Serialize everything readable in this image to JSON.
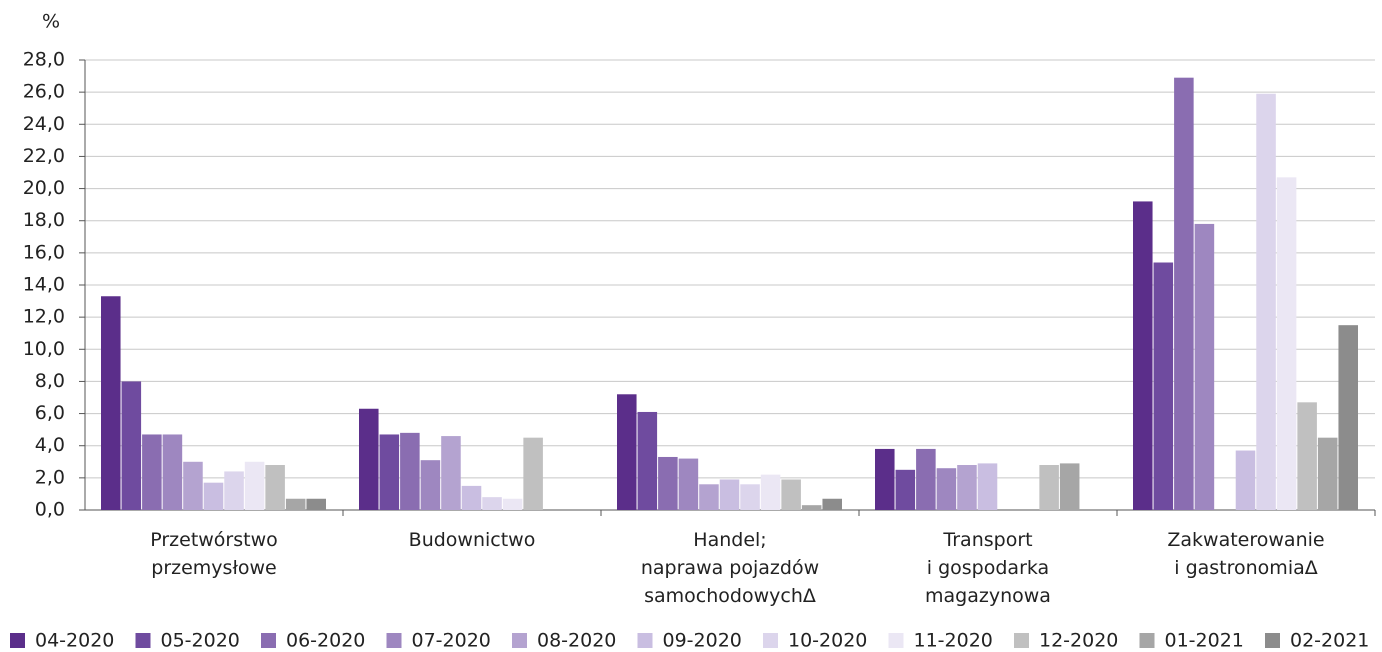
{
  "chart_data": {
    "type": "bar",
    "y_label": "%",
    "categories": [
      "Przetwórstwo\nprzemysłowe",
      "Budownictwo",
      "Handel;\nnaprawa pojazdów\nsamochodowychΔ",
      "Transport\ni gospodarka\nmagazynowa",
      "Zakwaterowanie\ni gastronomiaΔ"
    ],
    "series": [
      {
        "name": "04-2020",
        "color": "#5b2e8a",
        "values": [
          13.3,
          6.3,
          7.2,
          3.8,
          19.2
        ]
      },
      {
        "name": "05-2020",
        "color": "#6f4b9f",
        "values": [
          8.0,
          4.7,
          6.1,
          2.5,
          15.4
        ]
      },
      {
        "name": "06-2020",
        "color": "#8a6db1",
        "values": [
          4.7,
          4.8,
          3.3,
          3.8,
          26.9
        ]
      },
      {
        "name": "07-2020",
        "color": "#9e87c0",
        "values": [
          4.7,
          3.1,
          3.2,
          2.6,
          17.8
        ]
      },
      {
        "name": "08-2020",
        "color": "#b4a3d0",
        "values": [
          3.0,
          4.6,
          1.6,
          2.8,
          null
        ]
      },
      {
        "name": "09-2020",
        "color": "#c9bee1",
        "values": [
          1.7,
          1.5,
          1.9,
          2.9,
          3.7
        ]
      },
      {
        "name": "10-2020",
        "color": "#dcd5ec",
        "values": [
          2.4,
          0.8,
          1.6,
          null,
          25.9
        ]
      },
      {
        "name": "11-2020",
        "color": "#ebe7f4",
        "values": [
          3.0,
          0.7,
          2.2,
          null,
          20.7
        ]
      },
      {
        "name": "12-2020",
        "color": "#c0c0c0",
        "values": [
          2.8,
          4.5,
          1.9,
          2.8,
          6.7
        ]
      },
      {
        "name": "01-2021",
        "color": "#a6a6a6",
        "values": [
          0.7,
          null,
          0.3,
          2.9,
          4.5
        ]
      },
      {
        "name": "02-2021",
        "color": "#8c8c8c",
        "values": [
          0.7,
          null,
          0.7,
          null,
          11.5
        ]
      }
    ],
    "ylim": [
      0,
      28
    ],
    "yticks": [
      {
        "value": 0,
        "label": "0,0"
      },
      {
        "value": 2,
        "label": "2,0"
      },
      {
        "value": 4,
        "label": "4,0"
      },
      {
        "value": 6,
        "label": "6,0"
      },
      {
        "value": 8,
        "label": "8,0"
      },
      {
        "value": 10,
        "label": "10,0"
      },
      {
        "value": 12,
        "label": "12,0"
      },
      {
        "value": 14,
        "label": "14,0"
      },
      {
        "value": 16,
        "label": "16,0"
      },
      {
        "value": 18,
        "label": "18,0"
      },
      {
        "value": 20,
        "label": "20,0"
      },
      {
        "value": 22,
        "label": "22,0"
      },
      {
        "value": 24,
        "label": "24,0"
      },
      {
        "value": 26,
        "label": "26,0"
      },
      {
        "value": 28,
        "label": "28,0"
      }
    ],
    "grid": true,
    "legend": "bottom"
  }
}
